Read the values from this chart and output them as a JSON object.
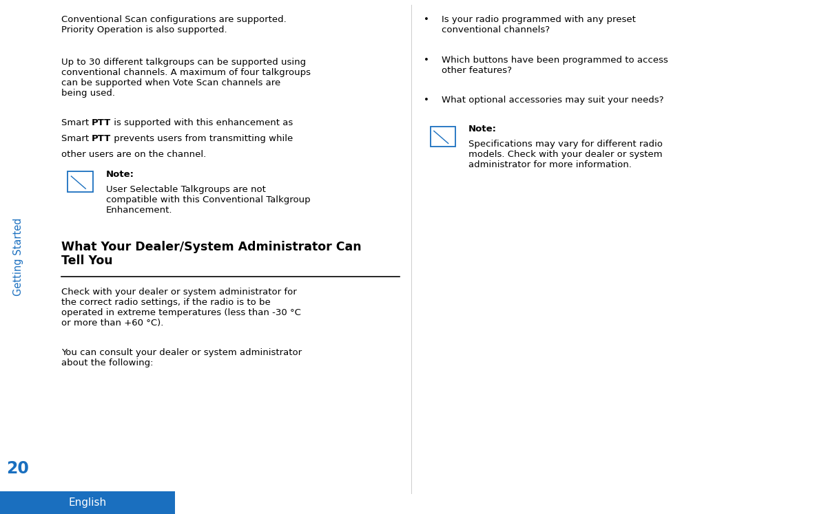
{
  "bg_color": "#ffffff",
  "sidebar_color": "#1a6fbf",
  "footer_color": "#1a6fbf",
  "page_number": "20",
  "page_number_color": "#1a6fbf",
  "sidebar_text": "Getting Started",
  "sidebar_text_color": "#1a6fbf",
  "footer_text": "English",
  "footer_text_color": "#ffffff",
  "heading_color": "#000000",
  "body_color": "#000000",
  "note_label": "Note:",
  "icon_color": "#1a6fbf",
  "divider_color": "#000000",
  "bullet_1": "Is your radio programmed with any preset\nconventional channels?",
  "bullet_2": "Which buttons have been programmed to access\nother features?",
  "bullet_3": "What optional accessories may suit your needs?",
  "note_left_body": "User Selectable Talkgroups are not\ncompatible with this Conventional Talkgroup\nEnhancement.",
  "note_right_body": "Specifications may vary for different radio\nmodels. Check with your dealer or system\nadministrator for more information."
}
